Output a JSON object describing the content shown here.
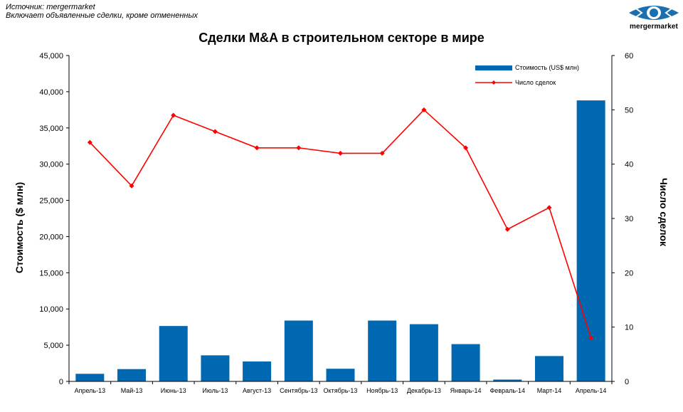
{
  "source_lines": [
    "Источник: mergermarket",
    "Включает объявленные сделки, кроме отмененных"
  ],
  "logo": {
    "text": "mergermarket",
    "color": "#1a6fb0"
  },
  "colors": {
    "bar": "#0067b1",
    "line": "#ff0000"
  },
  "chart_data": {
    "type": "bar+line",
    "title": "Сделки M&A  в строительном секторе в мире",
    "categories": [
      "Апрель-13",
      "Май-13",
      "Июнь-13",
      "Июль-13",
      "Август-13",
      "Сентябрь-13",
      "Октябрь-13",
      "Ноябрь-13",
      "Декабрь-13",
      "Январь-14",
      "Февраль-14",
      "Март-14",
      "Апрель-14"
    ],
    "series": [
      {
        "name": "Стоимость  (US$ млн)",
        "type": "bar",
        "axis": "left",
        "values": [
          1050,
          1700,
          7650,
          3600,
          2750,
          8400,
          1750,
          8400,
          7900,
          5150,
          250,
          3500,
          38800
        ]
      },
      {
        "name": "Число сделок",
        "type": "line",
        "axis": "right",
        "values": [
          44,
          36,
          49,
          46,
          43,
          43,
          42,
          42,
          50,
          43,
          28,
          32,
          8
        ]
      }
    ],
    "ylabel_left": "Стоимость  ($ млн)",
    "ylabel_right": "Число сделок",
    "ylim_left": [
      0,
      45000
    ],
    "ylim_right": [
      0,
      60
    ],
    "yticks_left": [
      "0",
      "5,000",
      "10,000",
      "15,000",
      "20,000",
      "25,000",
      "30,000",
      "35,000",
      "40,000",
      "45,000"
    ],
    "yticks_right": [
      "0",
      "10",
      "20",
      "30",
      "40",
      "50",
      "60"
    ],
    "legend_position": "top-right",
    "grid": false
  }
}
